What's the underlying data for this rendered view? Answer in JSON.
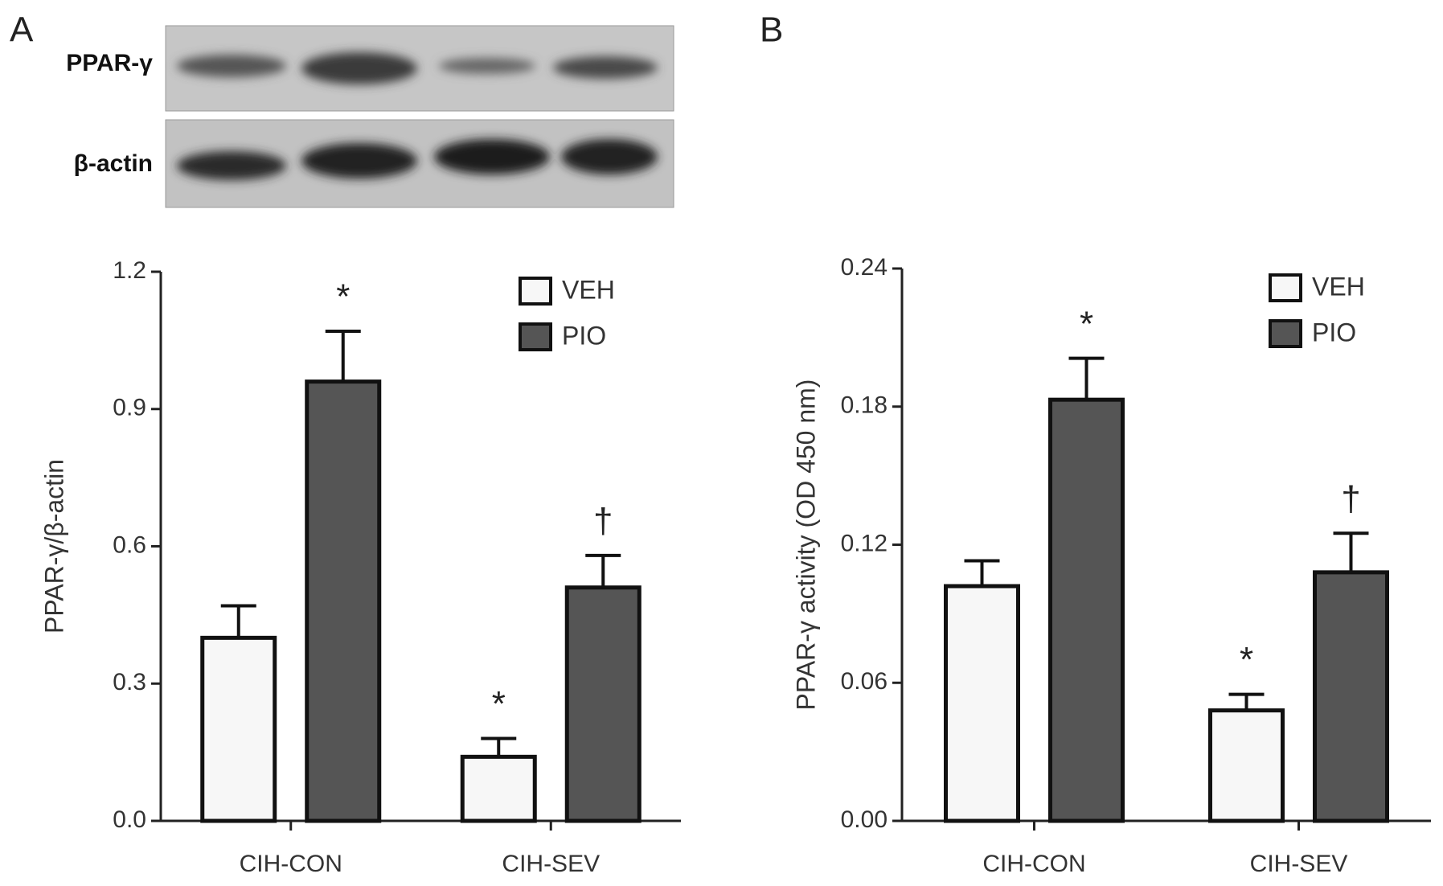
{
  "panels": [
    "A",
    "B"
  ],
  "blot": {
    "labels": [
      "PPAR-γ",
      "β-actin"
    ]
  },
  "chart_data": [
    {
      "type": "bar",
      "ylabel": "PPAR-γ/β-actin",
      "categories": [
        "CIH-CON",
        "CIH-SEV"
      ],
      "series": [
        {
          "name": "VEH",
          "color": "#f7f7f7",
          "values": [
            0.4,
            0.14
          ],
          "errors": [
            0.07,
            0.04
          ],
          "annotations": [
            null,
            "*"
          ]
        },
        {
          "name": "PIO",
          "color": "#555555",
          "values": [
            0.96,
            0.51
          ],
          "errors": [
            0.11,
            0.07
          ],
          "annotations": [
            "*",
            "†"
          ]
        }
      ],
      "ylim": [
        0,
        1.2
      ],
      "yticks": [
        {
          "value": 0,
          "label": "0.0"
        },
        0.3,
        0.6,
        0.9,
        1.2
      ],
      "legend": "upper right"
    },
    {
      "type": "bar",
      "ylabel": "PPAR-γ activity (OD 450 nm)",
      "categories": [
        "CIH-CON",
        "CIH-SEV"
      ],
      "series": [
        {
          "name": "VEH",
          "color": "#f7f7f7",
          "values": [
            0.102,
            0.048
          ],
          "errors": [
            0.011,
            0.007
          ],
          "annotations": [
            null,
            "*"
          ]
        },
        {
          "name": "PIO",
          "color": "#555555",
          "values": [
            0.183,
            0.108
          ],
          "errors": [
            0.018,
            0.017
          ],
          "annotations": [
            "*",
            "†"
          ]
        }
      ],
      "ylim": [
        0,
        0.24
      ],
      "yticks": [
        {
          "value": 0,
          "label": "0.00"
        },
        0.06,
        0.12,
        0.18,
        0.24
      ],
      "legend": "upper right"
    }
  ]
}
